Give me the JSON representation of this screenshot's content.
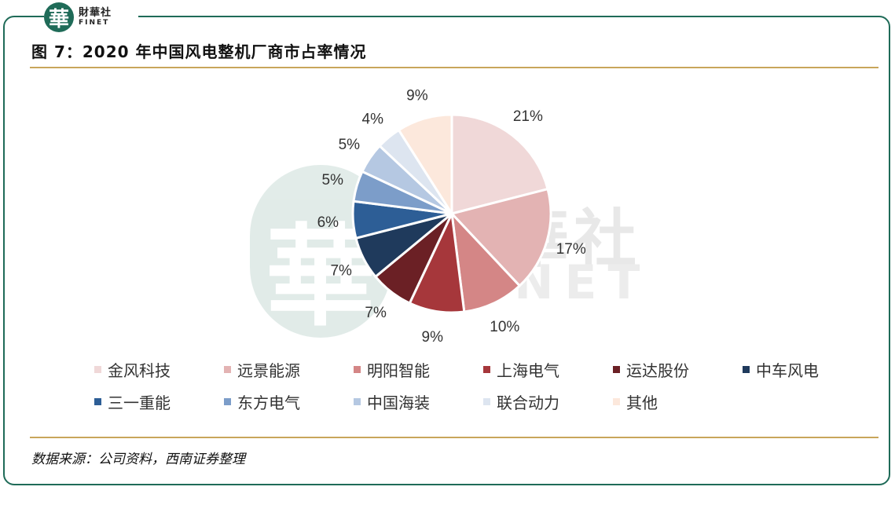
{
  "header": {
    "logo_cn": "財華社",
    "logo_en": "FINET",
    "title": "图 7：2020 年中国风电整机厂商市占率情况"
  },
  "footer": {
    "source": "数据来源：公司资料，西南证券整理"
  },
  "watermark": {
    "seal_char": "華",
    "cn": "財華社",
    "en": "FINET"
  },
  "chart_data": {
    "type": "pie",
    "title": "图 7：2020 年中国风电整机厂商市占率情况",
    "legend_position": "bottom",
    "slices": [
      {
        "label": "金风科技",
        "value": 21,
        "display": "21%",
        "color": "#f0d8d8"
      },
      {
        "label": "远景能源",
        "value": 17,
        "display": "17%",
        "color": "#e3b3b3"
      },
      {
        "label": "明阳智能",
        "value": 10,
        "display": "10%",
        "color": "#d48686"
      },
      {
        "label": "上海电气",
        "value": 9,
        "display": "9%",
        "color": "#a6373b"
      },
      {
        "label": "运达股份",
        "value": 7,
        "display": "7%",
        "color": "#6b2025"
      },
      {
        "label": "中车风电",
        "value": 7,
        "display": "7%",
        "color": "#1f3a5c"
      },
      {
        "label": "三一重能",
        "value": 6,
        "display": "6%",
        "color": "#2d5e96"
      },
      {
        "label": "东方电气",
        "value": 5,
        "display": "5%",
        "color": "#7c9dc9"
      },
      {
        "label": "中国海装",
        "value": 5,
        "display": "5%",
        "color": "#b5c8e2"
      },
      {
        "label": "联合动力",
        "value": 4,
        "display": "4%",
        "color": "#dde5f0"
      },
      {
        "label": "其他",
        "value": 9,
        "display": "9%",
        "color": "#fce8dc"
      }
    ]
  }
}
